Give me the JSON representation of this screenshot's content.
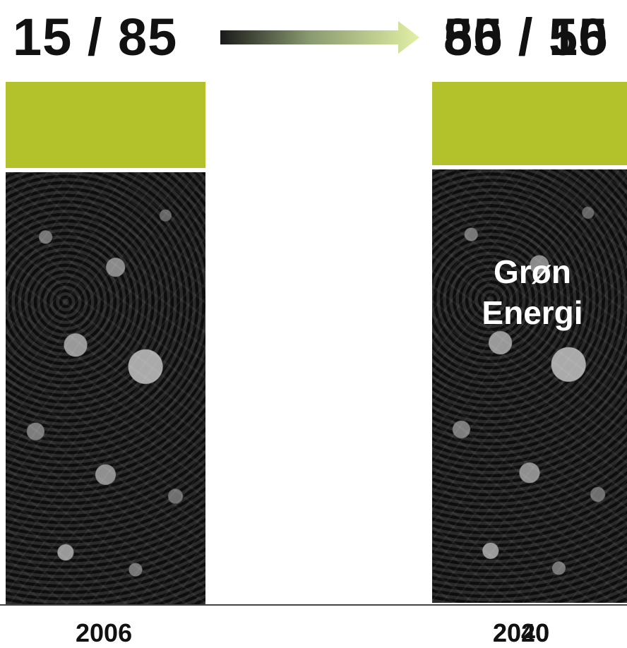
{
  "ratios": {
    "start": "15 / 85",
    "end_overlay_a": "50 / 50",
    "end_overlay_b": "85 / 15"
  },
  "years": {
    "start": "2006",
    "end_overlay_a": "2020",
    "end_overlay_b": "2040"
  },
  "energy_label": {
    "line1": "Grøn",
    "line2": "Energi"
  },
  "colors": {
    "green": "#b3c12a",
    "arrow_start": "#1a1a1a",
    "arrow_end": "#e2f0a5"
  },
  "icons": {
    "transition_arrow": "arrow-right-icon",
    "coal_image": "coal-pile-image"
  }
}
